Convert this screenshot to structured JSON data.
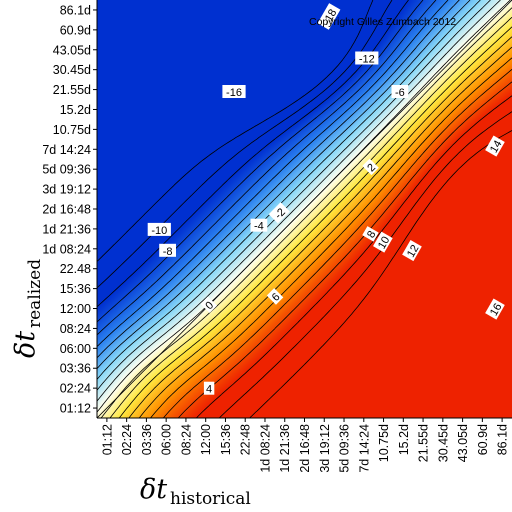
{
  "chart_data": {
    "type": "heatmap",
    "title": "",
    "copyright": "Copyright Gilles Zumbach 2012",
    "x_axis": {
      "symbol": "δt",
      "subscript": "historical"
    },
    "y_axis": {
      "symbol": "δt",
      "subscript": "realized"
    },
    "x_ticks": [
      "01:12",
      "02:24",
      "03:36",
      "06:00",
      "08:24",
      "12:00",
      "15:36",
      "22:48",
      "1d 08:24",
      "1d 21:36",
      "2d 16:48",
      "3d 19:12",
      "5d 09:36",
      "7d 14:24",
      "10.75d",
      "15.2d",
      "21.55d",
      "30.45d",
      "43.05d",
      "60.9d",
      "86.1d"
    ],
    "y_ticks": [
      "01:12",
      "02:24",
      "03:36",
      "06:00",
      "08:24",
      "12:00",
      "15:36",
      "22.48",
      "1d 08:24",
      "1d 21:36",
      "2d 16:48",
      "3d 19:12",
      "5d 09:36",
      "7d 14:24",
      "10.75d",
      "15.2d",
      "21.55d",
      "30.45d",
      "43.05d",
      "60.9d",
      "86.1d"
    ],
    "colorscale": [
      "#0030d0",
      "#2a80f0",
      "#88d8f8",
      "#fffff0",
      "#ffe840",
      "#ff9000",
      "#ee2200"
    ],
    "zrange": [
      -18,
      18
    ],
    "contour_labels": [
      "-18",
      "-16",
      "-12",
      "-10",
      "-8",
      "-6",
      "-4",
      "-2",
      "0",
      "2",
      "4",
      "6",
      "8",
      "10",
      "12",
      "14",
      "16"
    ],
    "contour_lines": "solid-black",
    "diagonal": true,
    "grid": false
  }
}
